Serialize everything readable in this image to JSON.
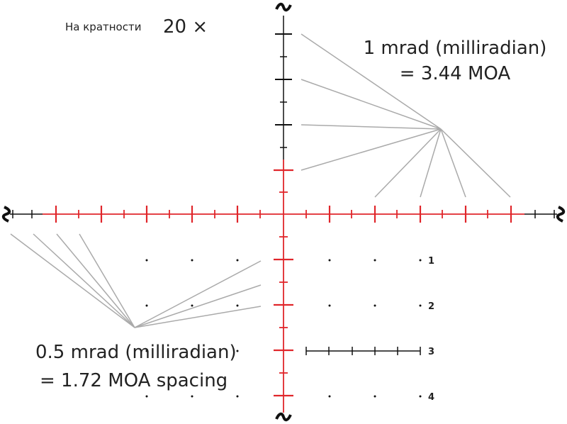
{
  "magnification": {
    "label": "На кратности",
    "value": "20 ×"
  },
  "callouts": [
    {
      "line1": "1 mrad (milliradian)",
      "line2": "= 3.44 MOA"
    },
    {
      "line1": "0.5 mrad (milliradian)",
      "line2": "= 1.72 MOA spacing"
    }
  ],
  "row_labels": [
    "1",
    "2",
    "3",
    "4"
  ]
}
